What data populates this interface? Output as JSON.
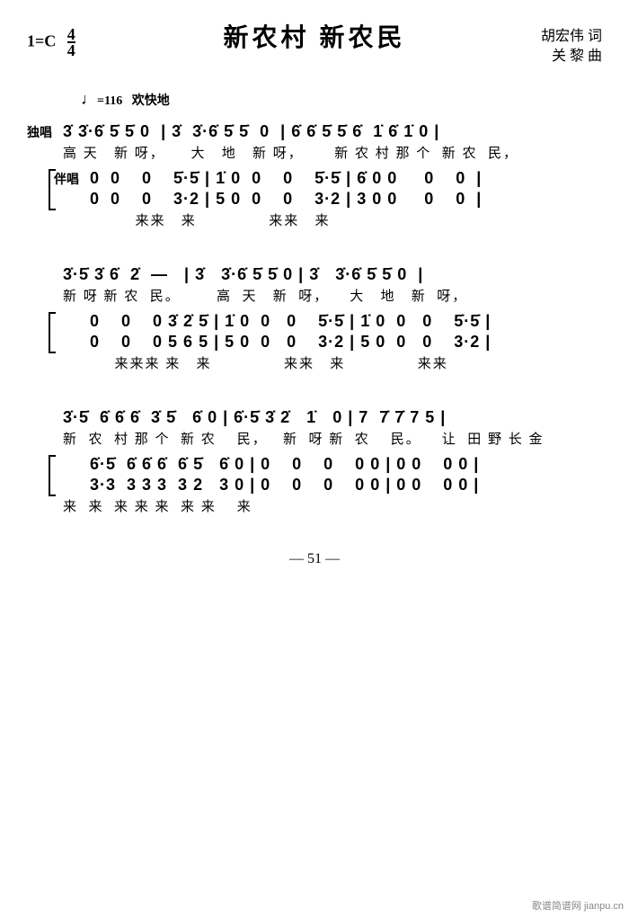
{
  "header": {
    "key": "1=C",
    "time_num": "4",
    "time_den": "4",
    "title": "新农村  新农民",
    "lyricist": "胡宏伟  词",
    "composer": "关  黎 曲"
  },
  "tempo": {
    "bpm": "=116",
    "marking": "欢快地"
  },
  "labels": {
    "solo": "独唱",
    "accomp": "伴唱"
  },
  "systems": [
    {
      "solo_notes": "3̇ 3̇·6̇ 5̇ 5̇ 0  | 3̇  3̇·6̇ 5̇ 5̇  0  | 6̇ 6̇ 5̇ 5̇ 6̇  1̇ 6̇ 1̇ 0 |",
      "solo_lyrics": "高 天   新 呀，     大   地   新 呀，      新 农 村 那 个  新 农  民，",
      "accomp1": "0  0    0    5̇·5̇ | 1̇ 0  0    0    5̇·5̇ | 6̇ 0 0     0    0  |",
      "accomp2": "0  0    0    3·2 | 5 0  0    0    3·2 | 3 0 0     0    0  |",
      "accomp_lyrics": "              来来   来              来来   来"
    },
    {
      "solo_notes": "3̇·5̇ 3̇ 6̇  2̇  —   | 3̇   3̇·6̇ 5̇ 5̇ 0 | 3̇   3̇·6̇ 5̇ 5̇ 0  |",
      "solo_lyrics": "新 呀 新 农  民。       高  天   新  呀，    大   地   新  呀，",
      "accomp1": "0    0    0 3̇ 2̇ 5̇ | 1̇ 0  0   0    5̇·5̇ | 1̇ 0  0   0    5̇·5̇ |",
      "accomp2": "0    0    0 5 6 5 | 5 0  0   0    3·2 | 5 0  0   0    3·2 |",
      "accomp_lyrics": "          来来来 来   来              来来   来              来来"
    },
    {
      "solo_notes": "3̇·5̇  6̇ 6̇ 6̇  3̇ 5̇   6̇ 0 | 6̇·5̇ 3̇ 2̇   1̇   0 | 7  7̇ 7̇ 7 5 |",
      "solo_lyrics": "新  农  村 那 个  新 农    民，   新  呀 新  农    民。    让  田 野 长 金",
      "accomp1": "6̇·5̇  6̇ 6̇ 6̇  6̇ 5̇   6̇ 0 | 0    0    0    0 0 | 0 0    0 0 |",
      "accomp2": "3·3  3 3 3  3 2   3 0 | 0    0    0    0 0 | 0 0    0 0 |",
      "accomp_lyrics": "来  来  来 来 来  来 来    来"
    }
  ],
  "page_num": "— 51 —",
  "watermark": "歌谱简谱网  jianpu.cn"
}
